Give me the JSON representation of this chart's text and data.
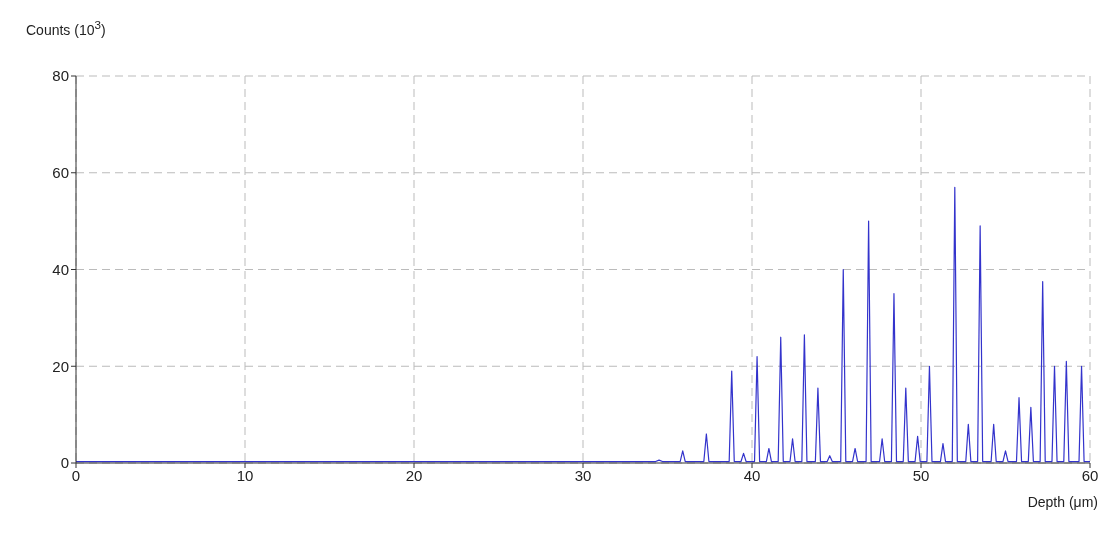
{
  "chart_data": {
    "type": "line",
    "ylabel": "Counts (10$^{3}$)",
    "xlabel": "Depth (μm)",
    "xlim": [
      0,
      60
    ],
    "xticks": [
      0,
      10,
      20,
      30,
      40,
      50,
      60
    ],
    "ylim": [
      0,
      80
    ],
    "yticks": [
      0,
      20,
      40,
      60,
      80
    ],
    "grid": true,
    "marker": "none",
    "line_style": "solid",
    "series": [
      {
        "color": "#3333cc",
        "x": [
          0,
          34.3,
          34.5,
          34.7,
          35.75,
          35.9,
          36.05,
          37.15,
          37.3,
          37.45,
          38.65,
          38.8,
          38.95,
          39.35,
          39.5,
          39.65,
          40.15,
          40.3,
          40.45,
          40.85,
          41.0,
          41.15,
          41.55,
          41.7,
          41.85,
          42.25,
          42.4,
          42.55,
          42.95,
          43.1,
          43.25,
          43.75,
          43.9,
          44.05,
          44.45,
          44.6,
          44.75,
          45.25,
          45.4,
          45.55,
          45.95,
          46.1,
          46.25,
          46.75,
          46.9,
          47.05,
          47.55,
          47.7,
          47.85,
          48.25,
          48.4,
          48.55,
          48.95,
          49.1,
          49.25,
          49.65,
          49.8,
          49.95,
          50.35,
          50.5,
          50.65,
          51.15,
          51.3,
          51.45,
          51.85,
          52.0,
          52.15,
          52.65,
          52.8,
          52.95,
          53.35,
          53.5,
          53.65,
          54.15,
          54.3,
          54.45,
          54.85,
          55.0,
          55.15,
          55.65,
          55.8,
          55.95,
          56.35,
          56.5,
          56.65,
          57.05,
          57.2,
          57.35,
          57.75,
          57.9,
          58.05,
          58.45,
          58.6,
          58.75,
          59.35,
          59.5,
          59.65,
          60
        ],
        "values": [
          0.3,
          0.3,
          0.6,
          0.3,
          0.3,
          2.5,
          0.3,
          0.3,
          6,
          0.3,
          0.3,
          19,
          0.3,
          0.3,
          2,
          0.3,
          0.3,
          22,
          0.3,
          0.3,
          3,
          0.3,
          0.3,
          26,
          0.3,
          0.3,
          5,
          0.3,
          0.3,
          26.5,
          0.3,
          0.3,
          15.5,
          0.3,
          0.3,
          1.5,
          0.3,
          0.3,
          40,
          0.3,
          0.3,
          3,
          0.3,
          0.3,
          50,
          0.3,
          0.3,
          5,
          0.3,
          0.3,
          35,
          0.3,
          0.3,
          15.5,
          0.3,
          0.3,
          5.5,
          0.3,
          0.3,
          20,
          0.3,
          0.3,
          4,
          0.3,
          0.3,
          57,
          0.3,
          0.3,
          8,
          0.3,
          0.3,
          49,
          0.3,
          0.3,
          8,
          0.3,
          0.3,
          2.5,
          0.3,
          0.3,
          13.5,
          0.3,
          0.3,
          11.5,
          0.3,
          0.3,
          37.5,
          0.3,
          0.3,
          20,
          0.3,
          0.3,
          21,
          0.3,
          0.3,
          20,
          0.3,
          0.3
        ]
      }
    ]
  }
}
